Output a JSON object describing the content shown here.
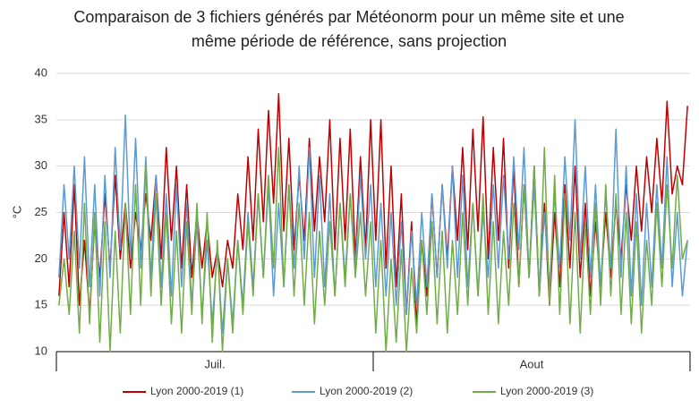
{
  "chart_data": {
    "type": "line",
    "title": "Comparaison de 3 fichiers générés par Météonorm pour un même site et une même période de référence, sans projection",
    "y_label": "°C",
    "months": [
      "Juil.",
      "Aout"
    ],
    "ylim": [
      10,
      40
    ],
    "yticks": [
      10,
      15,
      20,
      25,
      30,
      35,
      40
    ],
    "grid": true,
    "series": [
      {
        "name": "Lyon 2000-2019 (1)",
        "color": "#c00000",
        "values": [
          16,
          25,
          17,
          28,
          15,
          22,
          14,
          24,
          18,
          27,
          19,
          29,
          20,
          26,
          19,
          25,
          21,
          27,
          22,
          29,
          20,
          32,
          22,
          30,
          19,
          28,
          18,
          25,
          19,
          24,
          18,
          21,
          17,
          22,
          19,
          27,
          21,
          31,
          22,
          34,
          24,
          36,
          26,
          37.8,
          23,
          33,
          21,
          29,
          22,
          33,
          23,
          31,
          24,
          35,
          21,
          33,
          22,
          34,
          20,
          31,
          21,
          35,
          22,
          35,
          19,
          30,
          17,
          27,
          14,
          24,
          13,
          22,
          16,
          27,
          18,
          28,
          20,
          30,
          22,
          32,
          21,
          34,
          23,
          35.3,
          20,
          32,
          22,
          33,
          19,
          30,
          17,
          28,
          18,
          30,
          16,
          26,
          15,
          25,
          17,
          28,
          19,
          30,
          18,
          26,
          16,
          24,
          17,
          25,
          18,
          26,
          20,
          28,
          22,
          30,
          23,
          31,
          25,
          33,
          26,
          37,
          27,
          30,
          28,
          36.5
        ]
      },
      {
        "name": "Lyon 2000-2019 (2)",
        "color": "#5b9bd5",
        "values": [
          18,
          28,
          20,
          30,
          19,
          31,
          17,
          28,
          16,
          29,
          18,
          32,
          21,
          35.5,
          20,
          33,
          19,
          31,
          18,
          29,
          17,
          27,
          16,
          28,
          17,
          26,
          15,
          24,
          14,
          22,
          13,
          21,
          12,
          20,
          13,
          22,
          15,
          25,
          17,
          27,
          18,
          28,
          16,
          26,
          17,
          28,
          19,
          30,
          20,
          32,
          18,
          29,
          17,
          27,
          16,
          26,
          18,
          27,
          19,
          29,
          20,
          28,
          17,
          26,
          16,
          25,
          15,
          24,
          14,
          23,
          15,
          25,
          17,
          27,
          18,
          28,
          19,
          30,
          18,
          29,
          17,
          26,
          16,
          25,
          18,
          28,
          19,
          29,
          20,
          31,
          21,
          32,
          18,
          28,
          16,
          25,
          17,
          27,
          19,
          31,
          22,
          35,
          20,
          30,
          18,
          28,
          17,
          27,
          19,
          34,
          18,
          30,
          16,
          27,
          15,
          26,
          17,
          28,
          19,
          31,
          17,
          25,
          16,
          22
        ]
      },
      {
        "name": "Lyon 2000-2019 (3)",
        "color": "#70ad47",
        "values": [
          15,
          20,
          14,
          23,
          12,
          26,
          13,
          25,
          11,
          24,
          10,
          23,
          12,
          26,
          14,
          28,
          15,
          30,
          16,
          27,
          15,
          25,
          13,
          23,
          12,
          24,
          14,
          26,
          13,
          25,
          11,
          22,
          10,
          20,
          12,
          22,
          14,
          24,
          16,
          27,
          18,
          29,
          19,
          32,
          17,
          28,
          16,
          26,
          15,
          25,
          13,
          23,
          15,
          24,
          16,
          26,
          17,
          27,
          18,
          25,
          16,
          24,
          12,
          22,
          10,
          20,
          11,
          21,
          10,
          19,
          12,
          22,
          14,
          24,
          13,
          23,
          12,
          22,
          14,
          25,
          15,
          26,
          16,
          27,
          14,
          24,
          13,
          23,
          15,
          26,
          17,
          28,
          18,
          30,
          16,
          32,
          15,
          29,
          14,
          27,
          13,
          25,
          12,
          24,
          14,
          26,
          15,
          28,
          16,
          27,
          14,
          25,
          13,
          24,
          12,
          22,
          15,
          26,
          17,
          28,
          19,
          29,
          20,
          22
        ]
      }
    ]
  }
}
